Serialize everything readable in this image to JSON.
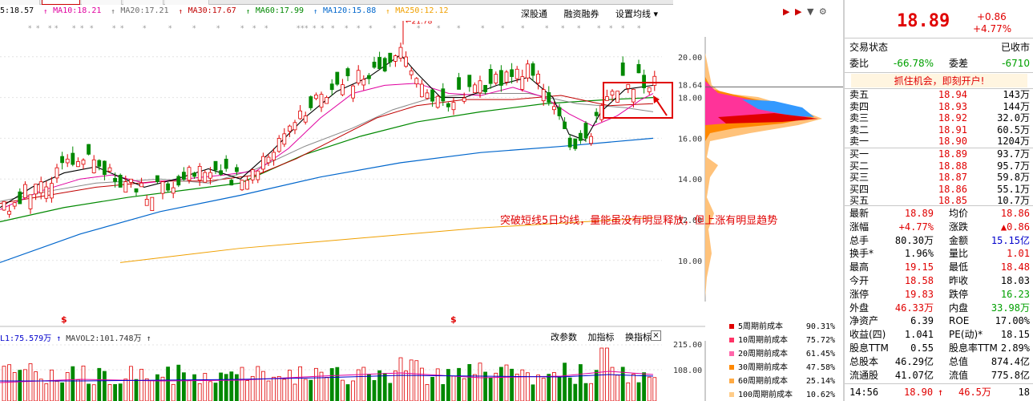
{
  "ma_legend": [
    {
      "label": "5:18.57",
      "color": "#000000",
      "marker": ""
    },
    {
      "label": "MA10:18.21",
      "color": "#e0009f",
      "marker": "↑"
    },
    {
      "label": "MA20:17.21",
      "color": "#6b6b6b",
      "marker": "↑"
    },
    {
      "label": "MA30:17.67",
      "color": "#c00000",
      "marker": "↑"
    },
    {
      "label": "MA60:17.99",
      "color": "#008800",
      "marker": "↑"
    },
    {
      "label": "MA120:15.88",
      "color": "#0066cc",
      "marker": "↑"
    },
    {
      "label": "MA250:12.12",
      "color": "#f0a000",
      "marker": "↑"
    }
  ],
  "toolbar": {
    "items": [
      "深股通",
      "融资融券",
      "设置均线 ▾"
    ]
  },
  "price_axis": {
    "labels": [
      "20.00",
      "18.64",
      "18.00",
      "16.00",
      "14.00",
      "12.00",
      "10.00"
    ]
  },
  "peak_label": "21.78",
  "annotation": "突破短线5日均线，量能虽没有明显释放，但上涨有明显趋势",
  "event_markers": [
    "$",
    "$"
  ],
  "volume": {
    "legend_a": "L1:75.579万",
    "legend_b": "MAVOL2:101.748万",
    "axis": [
      "215.00",
      "108.00"
    ],
    "toolbar": [
      "改参数",
      "加指标",
      "换指标"
    ],
    "close": "×"
  },
  "chip_legend": [
    {
      "name": "5周期前成本",
      "pct": "90.31%",
      "color": "#e00000"
    },
    {
      "name": "10周期前成本",
      "pct": "75.72%",
      "color": "#ff3366"
    },
    {
      "name": "20周期前成本",
      "pct": "61.45%",
      "color": "#ff66aa"
    },
    {
      "name": "30周期前成本",
      "pct": "47.58%",
      "color": "#ff8800"
    },
    {
      "name": "60周期前成本",
      "pct": "25.14%",
      "color": "#ffaa44"
    },
    {
      "name": "100周期前成本",
      "pct": "10.62%",
      "color": "#ffcc88"
    }
  ],
  "quote": {
    "price": "18.89",
    "change": "+0.86",
    "change_pct": "+4.77%",
    "status_label": "交易状态",
    "status_value": "已收市",
    "weibi_label": "委比",
    "weibi_value": "-66.78%",
    "weicha_label": "委差",
    "weicha_value": "-6710",
    "promo": "抓住机会，即刻开户!",
    "asks": [
      {
        "label": "卖五",
        "price": "18.94",
        "vol": "143万"
      },
      {
        "label": "卖四",
        "price": "18.93",
        "vol": "144万"
      },
      {
        "label": "卖三",
        "price": "18.92",
        "vol": "32.0万"
      },
      {
        "label": "卖二",
        "price": "18.91",
        "vol": "60.5万"
      },
      {
        "label": "卖一",
        "price": "18.90",
        "vol": "1204万"
      }
    ],
    "bids": [
      {
        "label": "买一",
        "price": "18.89",
        "vol": "93.7万"
      },
      {
        "label": "买二",
        "price": "18.88",
        "vol": "95.7万"
      },
      {
        "label": "买三",
        "price": "18.87",
        "vol": "59.8万"
      },
      {
        "label": "买四",
        "price": "18.86",
        "vol": "55.1万"
      },
      {
        "label": "买五",
        "price": "18.85",
        "vol": "10.7万"
      }
    ],
    "stats": [
      {
        "l1": "最新",
        "v1": "18.89",
        "c1": "red",
        "l2": "均价",
        "v2": "18.86",
        "c2": "red"
      },
      {
        "l1": "涨幅",
        "v1": "+4.77%",
        "c1": "red",
        "l2": "涨跌",
        "v2": "▲0.86",
        "c2": "red"
      },
      {
        "l1": "总手",
        "v1": "80.30万",
        "c1": "",
        "l2": "金额",
        "v2": "15.15亿",
        "c2": "blue"
      },
      {
        "l1": "换手*",
        "v1": "1.96%",
        "c1": "",
        "l2": "量比",
        "v2": "1.01",
        "c2": "red"
      },
      {
        "l1": "最高",
        "v1": "19.15",
        "c1": "red",
        "l2": "最低",
        "v2": "18.48",
        "c2": "red"
      },
      {
        "l1": "今开",
        "v1": "18.58",
        "c1": "red",
        "l2": "昨收",
        "v2": "18.03",
        "c2": ""
      },
      {
        "l1": "涨停",
        "v1": "19.83",
        "c1": "red",
        "l2": "跌停",
        "v2": "16.23",
        "c2": "green"
      },
      {
        "l1": "外盘",
        "v1": "46.33万",
        "c1": "red",
        "l2": "内盘",
        "v2": "33.98万",
        "c2": "green"
      },
      {
        "l1": "净资产",
        "v1": "6.39",
        "c1": "",
        "l2": "ROE",
        "v2": "17.00%",
        "c2": ""
      },
      {
        "l1": "收益(四)",
        "v1": "1.041",
        "c1": "",
        "l2": "PE(动)*",
        "v2": "18.15",
        "c2": ""
      },
      {
        "l1": "股息TTM",
        "v1": "0.55",
        "c1": "",
        "l2": "股息率TTM",
        "v2": "2.89%",
        "c2": ""
      },
      {
        "l1": "总股本",
        "v1": "46.29亿",
        "c1": "",
        "l2": "总值",
        "v2": "874.4亿",
        "c2": ""
      },
      {
        "l1": "流通股",
        "v1": "41.07亿",
        "c1": "",
        "l2": "流值",
        "v2": "775.8亿",
        "c2": ""
      }
    ],
    "last_trade": {
      "time": "14:56",
      "price": "18.90",
      "arrow": "↑",
      "vol": "46.5万",
      "count": "18"
    }
  },
  "colors": {
    "up": "#e00000",
    "down": "#008800",
    "ma5": "#000000",
    "ma10": "#e0009f",
    "ma20": "#888888",
    "ma30": "#c00000",
    "ma60": "#008800",
    "ma120": "#0066cc",
    "ma250": "#f0a000"
  }
}
